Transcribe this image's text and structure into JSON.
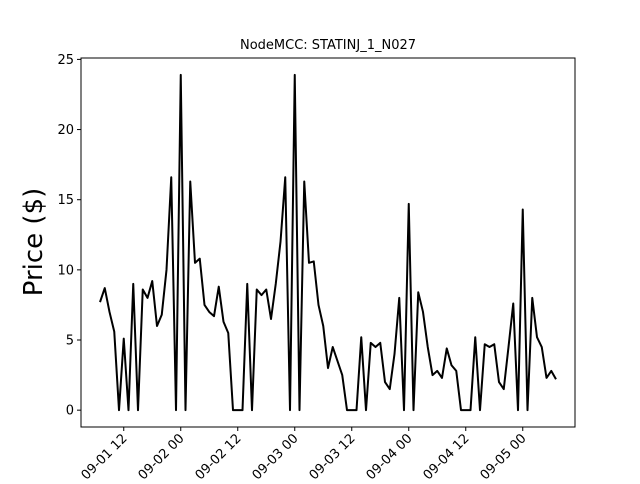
{
  "chart_data": {
    "type": "line",
    "title": "NodeMCC: STATINJ_1_N027",
    "y_label": "Price ($)",
    "x": [
      "09-01 07",
      "09-01 08",
      "09-01 09",
      "09-01 10",
      "09-01 11",
      "09-01 12",
      "09-01 13",
      "09-01 14",
      "09-01 15",
      "09-01 16",
      "09-01 17",
      "09-01 18",
      "09-01 19",
      "09-01 20",
      "09-01 21",
      "09-01 22",
      "09-01 23",
      "09-02 00",
      "09-02 01",
      "09-02 02",
      "09-02 03",
      "09-02 04",
      "09-02 05",
      "09-02 06",
      "09-02 07",
      "09-02 08",
      "09-02 09",
      "09-02 10",
      "09-02 11",
      "09-02 12",
      "09-02 13",
      "09-02 14",
      "09-02 15",
      "09-02 16",
      "09-02 17",
      "09-02 18",
      "09-02 19",
      "09-02 20",
      "09-02 21",
      "09-02 22",
      "09-02 23",
      "09-03 00",
      "09-03 01",
      "09-03 02",
      "09-03 03",
      "09-03 04",
      "09-03 05",
      "09-03 06",
      "09-03 07",
      "09-03 08",
      "09-03 09",
      "09-03 10",
      "09-03 11",
      "09-03 12",
      "09-03 13",
      "09-03 14",
      "09-03 15",
      "09-03 16",
      "09-03 17",
      "09-03 18",
      "09-03 19",
      "09-03 20",
      "09-03 21",
      "09-03 22",
      "09-03 23",
      "09-04 00",
      "09-04 01",
      "09-04 02",
      "09-04 03",
      "09-04 04",
      "09-04 05",
      "09-04 06",
      "09-04 07",
      "09-04 08",
      "09-04 09",
      "09-04 10",
      "09-04 11",
      "09-04 12",
      "09-04 13",
      "09-04 14",
      "09-04 15",
      "09-04 16",
      "09-04 17",
      "09-04 18",
      "09-04 19",
      "09-04 20",
      "09-04 21",
      "09-04 22",
      "09-04 23",
      "09-05 00",
      "09-05 01",
      "09-05 02",
      "09-05 03",
      "09-05 04",
      "09-05 05",
      "09-05 06",
      "09-05 07"
    ],
    "series": [
      {
        "name": "Price",
        "color": "#000000",
        "values": [
          7.7,
          8.7,
          7.0,
          5.6,
          0,
          5.1,
          0,
          9.0,
          0,
          8.6,
          8.0,
          9.2,
          6.0,
          6.8,
          10.0,
          16.6,
          0,
          23.9,
          0,
          16.3,
          10.5,
          10.8,
          7.5,
          7.0,
          6.7,
          8.8,
          6.3,
          5.5,
          0,
          0,
          0,
          9.0,
          0,
          8.6,
          8.2,
          8.6,
          6.5,
          9.0,
          12.0,
          16.6,
          0,
          23.9,
          0,
          16.3,
          10.5,
          10.6,
          7.5,
          6.0,
          3.0,
          4.5,
          3.5,
          2.5,
          0,
          0,
          0,
          5.2,
          0,
          4.8,
          4.5,
          4.8,
          2.0,
          1.5,
          4.0,
          8.0,
          0,
          14.7,
          0,
          8.4,
          7.0,
          4.5,
          2.5,
          2.8,
          2.3,
          4.4,
          3.2,
          2.8,
          0,
          0,
          0,
          5.2,
          0,
          4.7,
          4.5,
          4.7,
          2.0,
          1.5,
          4.5,
          7.6,
          0,
          14.3,
          0,
          8.0,
          5.2,
          4.5,
          2.3,
          2.8,
          2.2
        ]
      }
    ],
    "xlim": [
      "09-01 03",
      "09-05 11"
    ],
    "xticks": [
      "09-01 12",
      "09-02 00",
      "09-02 12",
      "09-03 00",
      "09-03 12",
      "09-04 00",
      "09-04 12",
      "09-05 00"
    ],
    "ylim": [
      -1.2,
      25.1
    ],
    "yticks": [
      0,
      5,
      10,
      15,
      20,
      25
    ]
  }
}
